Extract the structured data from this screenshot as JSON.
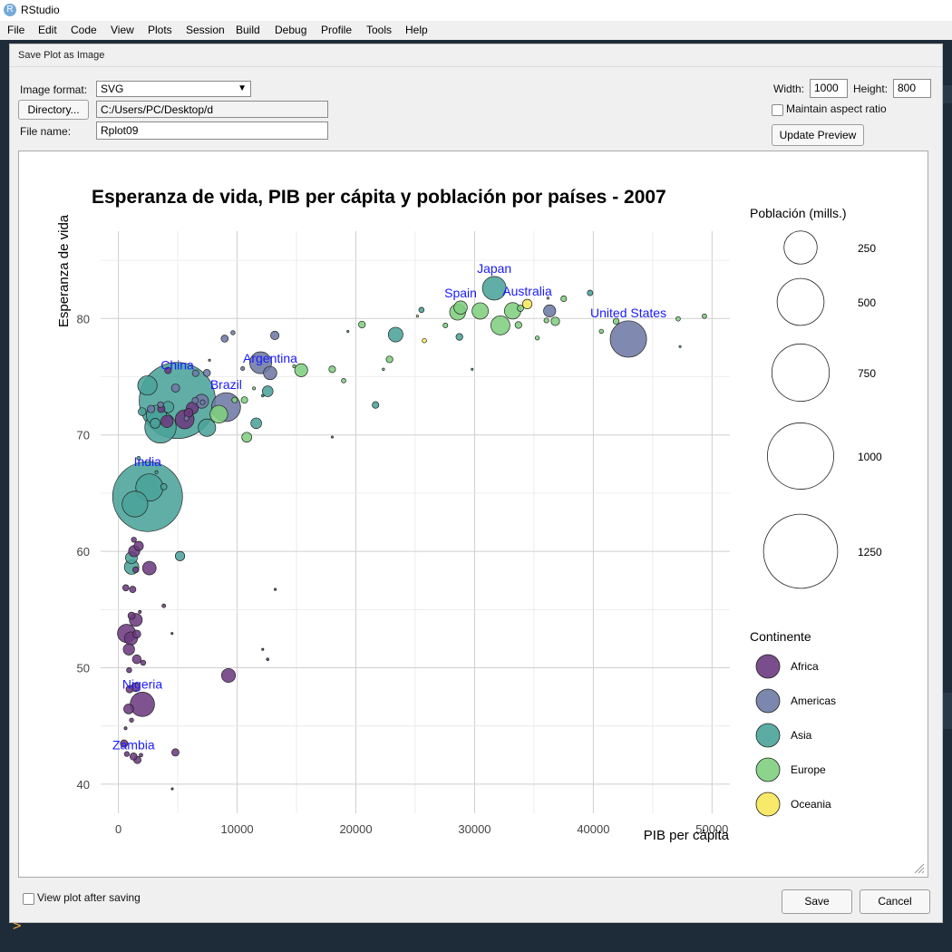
{
  "window": {
    "title": "RStudio",
    "app_icon": "R"
  },
  "menubar": {
    "items": [
      "File",
      "Edit",
      "Code",
      "View",
      "Plots",
      "Session",
      "Build",
      "Debug",
      "Profile",
      "Tools",
      "Help"
    ]
  },
  "dialog": {
    "title": "Save Plot as Image",
    "image_format_label": "Image format:",
    "image_format_value": "SVG",
    "directory_button": "Directory...",
    "directory_value": "C:/Users/PC/Desktop/d",
    "file_name_label": "File name:",
    "file_name_value": "Rplot09",
    "width_label": "Width:",
    "width_value": "1000",
    "height_label": "Height:",
    "height_value": "800",
    "maintain_aspect_label": "Maintain aspect ratio",
    "maintain_aspect_checked": false,
    "update_preview_button": "Update Preview",
    "view_after_saving_label": "View plot after saving",
    "view_after_saving_checked": false,
    "save_button": "Save",
    "cancel_button": "Cancel"
  },
  "chart_data": {
    "type": "scatter",
    "title": "Esperanza de vida, PIB per cápita y población por países - 2007",
    "xlabel": "PIB per cápita",
    "ylabel": "Esperanza de vida",
    "xlim": [
      -1500,
      51500
    ],
    "ylim": [
      37.5,
      87.5
    ],
    "x_ticks": [
      0,
      10000,
      20000,
      30000,
      40000,
      50000
    ],
    "y_ticks": [
      40,
      50,
      60,
      70,
      80
    ],
    "grid": true,
    "size_legend": {
      "title": "Población (mills.)",
      "values": [
        250,
        500,
        750,
        1000,
        1250
      ]
    },
    "color_legend": {
      "title": "Continente",
      "entries": [
        {
          "name": "Africa",
          "color": "#6c3b80"
        },
        {
          "name": "Americas",
          "color": "#6e7aa5"
        },
        {
          "name": "Asia",
          "color": "#4aa39a"
        },
        {
          "name": "Europe",
          "color": "#7fcf7f"
        },
        {
          "name": "Oceania",
          "color": "#f7e758"
        }
      ]
    },
    "labels": [
      {
        "text": "China",
        "x": 4959,
        "y": 72.96
      },
      {
        "text": "India",
        "x": 2452,
        "y": 64.7
      },
      {
        "text": "United States",
        "x": 42952,
        "y": 78.24
      },
      {
        "text": "Japan",
        "x": 31656,
        "y": 82.6
      },
      {
        "text": "Brazil",
        "x": 9066,
        "y": 72.39
      },
      {
        "text": "Spain",
        "x": 28821,
        "y": 80.94
      },
      {
        "text": "Australia",
        "x": 34435,
        "y": 81.24
      },
      {
        "text": "Argentina",
        "x": 12779,
        "y": 75.32
      },
      {
        "text": "Nigeria",
        "x": 2014,
        "y": 46.86
      },
      {
        "text": "Zambia",
        "x": 1271,
        "y": 42.38
      }
    ],
    "points": [
      {
        "x": 4959,
        "y": 72.96,
        "pop": 1318.7,
        "continent": "Asia"
      },
      {
        "x": 2452,
        "y": 64.7,
        "pop": 1110.4,
        "continent": "Asia"
      },
      {
        "x": 42952,
        "y": 78.24,
        "pop": 301.1,
        "continent": "Americas"
      },
      {
        "x": 3541,
        "y": 70.65,
        "pop": 223.5,
        "continent": "Asia"
      },
      {
        "x": 9066,
        "y": 72.39,
        "pop": 190.0,
        "continent": "Americas"
      },
      {
        "x": 2606,
        "y": 65.48,
        "pop": 169.3,
        "continent": "Asia"
      },
      {
        "x": 1391,
        "y": 64.06,
        "pop": 150.4,
        "continent": "Asia"
      },
      {
        "x": 2014,
        "y": 46.86,
        "pop": 135.0,
        "continent": "Africa"
      },
      {
        "x": 31656,
        "y": 82.6,
        "pop": 127.5,
        "continent": "Asia"
      },
      {
        "x": 11977,
        "y": 76.2,
        "pop": 108.7,
        "continent": "Americas"
      },
      {
        "x": 3190,
        "y": 71.69,
        "pop": 91.1,
        "continent": "Asia"
      },
      {
        "x": 2442,
        "y": 74.25,
        "pop": 85.3,
        "continent": "Asia"
      },
      {
        "x": 32170,
        "y": 79.41,
        "pop": 82.4,
        "continent": "Europe"
      },
      {
        "x": 691,
        "y": 52.95,
        "pop": 76.5,
        "continent": "Africa"
      },
      {
        "x": 5581,
        "y": 71.34,
        "pop": 80.3,
        "continent": "Africa"
      },
      {
        "x": 8458,
        "y": 71.78,
        "pop": 71.2,
        "continent": "Europe"
      },
      {
        "x": 7458,
        "y": 70.62,
        "pop": 69.5,
        "continent": "Asia"
      },
      {
        "x": 33203,
        "y": 80.66,
        "pop": 61.1,
        "continent": "Europe"
      },
      {
        "x": 30470,
        "y": 80.65,
        "pop": 60.8,
        "continent": "Europe"
      },
      {
        "x": 28570,
        "y": 80.55,
        "pop": 58.1,
        "continent": "Europe"
      },
      {
        "x": 9269,
        "y": 49.34,
        "pop": 43.9,
        "continent": "Africa"
      },
      {
        "x": 1107,
        "y": 58.65,
        "pop": 47.8,
        "continent": "Asia"
      },
      {
        "x": 23348,
        "y": 78.62,
        "pop": 49.0,
        "continent": "Asia"
      },
      {
        "x": 28821,
        "y": 80.94,
        "pop": 40.4,
        "continent": "Europe"
      },
      {
        "x": 12779,
        "y": 75.32,
        "pop": 40.3,
        "continent": "Americas"
      },
      {
        "x": 7006,
        "y": 72.89,
        "pop": 44.2,
        "continent": "Americas"
      },
      {
        "x": 15390,
        "y": 75.56,
        "pop": 38.5,
        "continent": "Europe"
      },
      {
        "x": 1463,
        "y": 54.11,
        "pop": 38.1,
        "continent": "Africa"
      },
      {
        "x": 1056,
        "y": 52.52,
        "pop": 39.0,
        "continent": "Africa"
      },
      {
        "x": 36319,
        "y": 80.65,
        "pop": 33.4,
        "continent": "Americas"
      },
      {
        "x": 2602,
        "y": 58.56,
        "pop": 42.3,
        "continent": "Africa"
      },
      {
        "x": 4090,
        "y": 71.16,
        "pop": 33.8,
        "continent": "Africa"
      },
      {
        "x": 11606,
        "y": 71.0,
        "pop": 26.1,
        "continent": "Asia"
      },
      {
        "x": 1091,
        "y": 59.45,
        "pop": 31.9,
        "continent": "Asia"
      },
      {
        "x": 12572,
        "y": 73.75,
        "pop": 26.0,
        "continent": "Asia"
      },
      {
        "x": 34435,
        "y": 81.24,
        "pop": 20.4,
        "continent": "Oceania"
      },
      {
        "x": 1328,
        "y": 60.02,
        "pop": 28.9,
        "continent": "Africa"
      },
      {
        "x": 3095,
        "y": 71.0,
        "pop": 22.2,
        "continent": "Asia"
      },
      {
        "x": 4185,
        "y": 72.4,
        "pop": 28.7,
        "continent": "Asia"
      },
      {
        "x": 10808,
        "y": 69.8,
        "pop": 22.3,
        "continent": "Europe"
      },
      {
        "x": 1271,
        "y": 42.38,
        "pop": 11.7,
        "continent": "Africa"
      },
      {
        "x": 5186,
        "y": 59.59,
        "pop": 20.4,
        "continent": "Asia"
      },
      {
        "x": 4811,
        "y": 74.03,
        "pop": 15.4,
        "continent": "Americas"
      },
      {
        "x": 13171,
        "y": 78.55,
        "pop": 16.3,
        "continent": "Americas"
      },
      {
        "x": 36798,
        "y": 79.76,
        "pop": 16.6,
        "continent": "Europe"
      },
      {
        "x": 1441,
        "y": 48.33,
        "pop": 18.0,
        "continent": "Africa"
      },
      {
        "x": 862,
        "y": 46.46,
        "pop": 22.2,
        "continent": "Africa"
      },
      {
        "x": 1544,
        "y": 50.73,
        "pop": 17.7,
        "continent": "Africa"
      },
      {
        "x": 470,
        "y": 43.49,
        "pop": 12.3,
        "continent": "Africa"
      },
      {
        "x": 2749,
        "y": 72.23,
        "pop": 12.6,
        "continent": "Americas"
      },
      {
        "x": 41920,
        "y": 79.76,
        "pop": 8.2,
        "continent": "Europe"
      },
      {
        "x": 33692,
        "y": 79.44,
        "pop": 10.4,
        "continent": "Europe"
      },
      {
        "x": 20510,
        "y": 79.48,
        "pop": 10.6,
        "continent": "Europe"
      },
      {
        "x": 22833,
        "y": 76.49,
        "pop": 10.2,
        "continent": "Europe"
      },
      {
        "x": 18008,
        "y": 75.64,
        "pop": 10.2,
        "continent": "Europe"
      },
      {
        "x": 7446,
        "y": 75.32,
        "pop": 11.4,
        "continent": "Americas"
      },
      {
        "x": 4173,
        "y": 75.54,
        "pop": 9.8,
        "continent": "Africa"
      },
      {
        "x": 33860,
        "y": 80.88,
        "pop": 9.0,
        "continent": "Europe"
      },
      {
        "x": 10611,
        "y": 73.0,
        "pop": 9.9,
        "continent": "Europe"
      },
      {
        "x": 1201,
        "y": 56.73,
        "pop": 9.5,
        "continent": "Africa"
      },
      {
        "x": 6469,
        "y": 72.96,
        "pop": 9.3,
        "continent": "Americas"
      },
      {
        "x": 3820,
        "y": 65.55,
        "pop": 8.9,
        "continent": "Asia"
      },
      {
        "x": 9787,
        "y": 73.0,
        "pop": 7.3,
        "continent": "Europe"
      },
      {
        "x": 37506,
        "y": 81.7,
        "pop": 7.6,
        "continent": "Europe"
      },
      {
        "x": 36048,
        "y": 79.83,
        "pop": 5.5,
        "continent": "Europe"
      },
      {
        "x": 39725,
        "y": 82.2,
        "pop": 6.98,
        "continent": "Asia"
      },
      {
        "x": 25523,
        "y": 80.74,
        "pop": 6.4,
        "continent": "Asia"
      },
      {
        "x": 25768,
        "y": 78.1,
        "pop": 4.2,
        "continent": "Oceania"
      },
      {
        "x": 47143,
        "y": 79.97,
        "pop": 4.6,
        "continent": "Europe"
      },
      {
        "x": 40676,
        "y": 78.9,
        "pop": 4.1,
        "continent": "Europe"
      },
      {
        "x": 47307,
        "y": 77.59,
        "pop": 0.3,
        "continent": "Asia"
      },
      {
        "x": 49357,
        "y": 80.2,
        "pop": 4.6,
        "continent": "Europe"
      },
      {
        "x": 1598,
        "y": 42.08,
        "pop": 12.3,
        "continent": "Africa"
      },
      {
        "x": 4797,
        "y": 42.73,
        "pop": 12.4,
        "continent": "Africa"
      },
      {
        "x": 706,
        "y": 42.59,
        "pop": 5.7,
        "continent": "Africa"
      },
      {
        "x": 2082,
        "y": 50.43,
        "pop": 6.0,
        "continent": "Africa"
      },
      {
        "x": 943,
        "y": 48.16,
        "pop": 12.0,
        "continent": "Africa"
      },
      {
        "x": 619,
        "y": 56.87,
        "pop": 8.8,
        "continent": "Africa"
      },
      {
        "x": 1545,
        "y": 52.89,
        "pop": 14.3,
        "continent": "Africa"
      },
      {
        "x": 1107,
        "y": 54.47,
        "pop": 12.0,
        "continent": "Africa"
      },
      {
        "x": 1704,
        "y": 60.46,
        "pop": 19.9,
        "continent": "Africa"
      },
      {
        "x": 882,
        "y": 51.58,
        "pop": 29.2,
        "continent": "Africa"
      },
      {
        "x": 1463,
        "y": 58.42,
        "pop": 8.1,
        "continent": "Africa"
      },
      {
        "x": 7092,
        "y": 72.8,
        "pop": 5.5,
        "continent": "Americas"
      },
      {
        "x": 3548,
        "y": 72.6,
        "pop": 8.0,
        "continent": "Americas"
      },
      {
        "x": 9645,
        "y": 78.78,
        "pop": 4.1,
        "continent": "Americas"
      },
      {
        "x": 8948,
        "y": 78.27,
        "pop": 11.4,
        "continent": "Americas"
      },
      {
        "x": 5728,
        "y": 71.42,
        "pop": 5.2,
        "continent": "Americas"
      },
      {
        "x": 10461,
        "y": 75.7,
        "pop": 3.3,
        "continent": "Americas"
      },
      {
        "x": 3609,
        "y": 72.24,
        "pop": 12.7,
        "continent": "Africa"
      },
      {
        "x": 6223,
        "y": 72.3,
        "pop": 33.3,
        "continent": "Africa"
      },
      {
        "x": 1803,
        "y": 54.8,
        "pop": 2.0,
        "continent": "Africa"
      },
      {
        "x": 12154,
        "y": 73.37,
        "pop": 1.5,
        "continent": "Asia"
      },
      {
        "x": 19328,
        "y": 78.89,
        "pop": 0.8,
        "continent": "Asia"
      },
      {
        "x": 22316,
        "y": 75.64,
        "pop": 1.3,
        "continent": "Europe"
      },
      {
        "x": 18970,
        "y": 74.66,
        "pop": 4.5,
        "continent": "Europe"
      },
      {
        "x": 21655,
        "y": 72.57,
        "pop": 10.1,
        "continent": "Asia"
      },
      {
        "x": 13206,
        "y": 56.73,
        "pop": 1.1,
        "continent": "Africa"
      },
      {
        "x": 12570,
        "y": 50.73,
        "pop": 1.6,
        "continent": "Africa"
      },
      {
        "x": 12154,
        "y": 51.58,
        "pop": 0.5,
        "continent": "Africa"
      },
      {
        "x": 4513,
        "y": 52.95,
        "pop": 0.5,
        "continent": "Africa"
      },
      {
        "x": 3820,
        "y": 55.32,
        "pop": 3.2,
        "continent": "Africa"
      },
      {
        "x": 4535,
        "y": 39.6,
        "pop": 0.3,
        "continent": "Africa"
      },
      {
        "x": 18009,
        "y": 69.82,
        "pop": 0.4,
        "continent": "Americas"
      },
      {
        "x": 29796,
        "y": 75.64,
        "pop": 0.4,
        "continent": "Asia"
      },
      {
        "x": 36180,
        "y": 81.75,
        "pop": 0.3,
        "continent": "Europe"
      },
      {
        "x": 27538,
        "y": 79.41,
        "pop": 5.2,
        "continent": "Europe"
      },
      {
        "x": 25185,
        "y": 80.2,
        "pop": 0.5,
        "continent": "Oceania"
      },
      {
        "x": 35278,
        "y": 78.33,
        "pop": 3.9,
        "continent": "Europe"
      },
      {
        "x": 28718,
        "y": 78.42,
        "pop": 10.6,
        "continent": "Asia"
      },
      {
        "x": 7670,
        "y": 76.42,
        "pop": 0.3,
        "continent": "Americas"
      },
      {
        "x": 11415,
        "y": 74.0,
        "pop": 2.0,
        "continent": "Europe"
      },
      {
        "x": 2000,
        "y": 72.0,
        "pop": 14.0,
        "continent": "Asia"
      },
      {
        "x": 1700,
        "y": 68.0,
        "pop": 3.0,
        "continent": "Asia"
      },
      {
        "x": 3200,
        "y": 66.8,
        "pop": 2.0,
        "continent": "Asia"
      },
      {
        "x": 1300,
        "y": 61.0,
        "pop": 6.0,
        "continent": "Africa"
      },
      {
        "x": 1100,
        "y": 45.5,
        "pop": 4.0,
        "continent": "Africa"
      },
      {
        "x": 600,
        "y": 44.8,
        "pop": 2.0,
        "continent": "Africa"
      },
      {
        "x": 1900,
        "y": 42.5,
        "pop": 3.0,
        "continent": "Africa"
      },
      {
        "x": 900,
        "y": 49.8,
        "pop": 6.0,
        "continent": "Africa"
      },
      {
        "x": 6500,
        "y": 75.3,
        "pop": 10.0,
        "continent": "Americas"
      },
      {
        "x": 5900,
        "y": 71.9,
        "pop": 18.0,
        "continent": "Africa"
      },
      {
        "x": 14800,
        "y": 75.9,
        "pop": 2.0,
        "continent": "Europe"
      }
    ]
  }
}
